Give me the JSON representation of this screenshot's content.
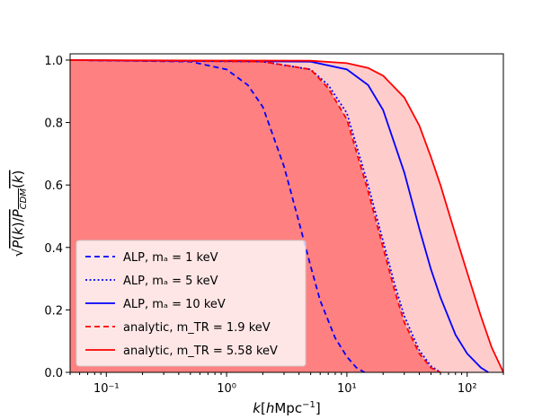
{
  "chart_data": {
    "type": "line",
    "xlabel": "k[hMpc⁻¹]",
    "ylabel": "√(P(k)/P_CDM(k))",
    "xscale": "log",
    "xlim": [
      0.05,
      200
    ],
    "ylim": [
      0.0,
      1.02
    ],
    "x_ticks": [
      {
        "value": 0.1,
        "label": "10⁻¹"
      },
      {
        "value": 1,
        "label": "10⁰"
      },
      {
        "value": 10,
        "label": "10¹"
      },
      {
        "value": 100,
        "label": "10²"
      }
    ],
    "y_ticks": [
      {
        "value": 0.0,
        "label": "0.0"
      },
      {
        "value": 0.2,
        "label": "0.2"
      },
      {
        "value": 0.4,
        "label": "0.4"
      },
      {
        "value": 0.6,
        "label": "0.6"
      },
      {
        "value": 0.8,
        "label": "0.8"
      },
      {
        "value": 1.0,
        "label": "1.0"
      }
    ],
    "series": [
      {
        "name": "ALP, m_a = 1 keV",
        "legend_label": "ALP, mₐ = 1 keV",
        "color": "#0000ff",
        "style": "dashed",
        "x": [
          0.05,
          0.5,
          1.0,
          1.5,
          2.0,
          3.0,
          4.0,
          5.0,
          6.0,
          8.0,
          10.0,
          12.0,
          14.0
        ],
        "y": [
          1.0,
          0.995,
          0.97,
          0.92,
          0.85,
          0.66,
          0.48,
          0.34,
          0.23,
          0.11,
          0.05,
          0.015,
          0.0
        ]
      },
      {
        "name": "ALP, m_a = 5 keV",
        "legend_label": "ALP, mₐ = 5 keV",
        "color": "#0000ff",
        "style": "dotted",
        "x": [
          0.05,
          2.0,
          5.0,
          7.0,
          10.0,
          15.0,
          20.0,
          25.0,
          30.0,
          40.0,
          50.0,
          60.0
        ],
        "y": [
          1.0,
          0.995,
          0.97,
          0.92,
          0.83,
          0.6,
          0.42,
          0.28,
          0.18,
          0.07,
          0.02,
          0.0
        ]
      },
      {
        "name": "ALP, m_a = 10 keV",
        "legend_label": "ALP, mₐ = 10 keV",
        "color": "#0000ff",
        "style": "solid",
        "x": [
          0.05,
          5.0,
          10.0,
          15.0,
          20.0,
          30.0,
          40.0,
          50.0,
          60.0,
          80.0,
          100.0,
          130.0,
          150.0
        ],
        "y": [
          1.0,
          0.995,
          0.97,
          0.92,
          0.84,
          0.64,
          0.46,
          0.33,
          0.24,
          0.12,
          0.06,
          0.015,
          0.0
        ]
      },
      {
        "name": "analytic, m_TR = 1.9 keV",
        "legend_label": "analytic, m_TR = 1.9 keV",
        "color": "#ff0000",
        "style": "dashed",
        "x": [
          0.05,
          2.0,
          5.0,
          7.0,
          10.0,
          15.0,
          20.0,
          25.0,
          30.0,
          40.0,
          50.0,
          60.0
        ],
        "y": [
          1.0,
          0.995,
          0.97,
          0.91,
          0.81,
          0.58,
          0.4,
          0.26,
          0.16,
          0.06,
          0.015,
          0.0
        ]
      },
      {
        "name": "analytic, m_TR = 5.58 keV",
        "legend_label": "analytic, m_TR = 5.58 keV",
        "color": "#ff0000",
        "style": "solid",
        "x": [
          0.05,
          5.0,
          10.0,
          15.0,
          20.0,
          30.0,
          40.0,
          50.0,
          60.0,
          80.0,
          100.0,
          130.0,
          160.0,
          200.0
        ],
        "y": [
          1.0,
          0.998,
          0.99,
          0.975,
          0.95,
          0.88,
          0.79,
          0.69,
          0.6,
          0.44,
          0.32,
          0.18,
          0.08,
          0.0
        ]
      }
    ],
    "fill_regions": [
      {
        "name": "below analytic m_TR = 1.9 keV",
        "under_series": 3,
        "color": "#ff8080"
      },
      {
        "name": "between analytic curves",
        "under_series": 4,
        "color": "#ffcccc"
      }
    ],
    "legend": {
      "placement": "lower-left"
    }
  }
}
